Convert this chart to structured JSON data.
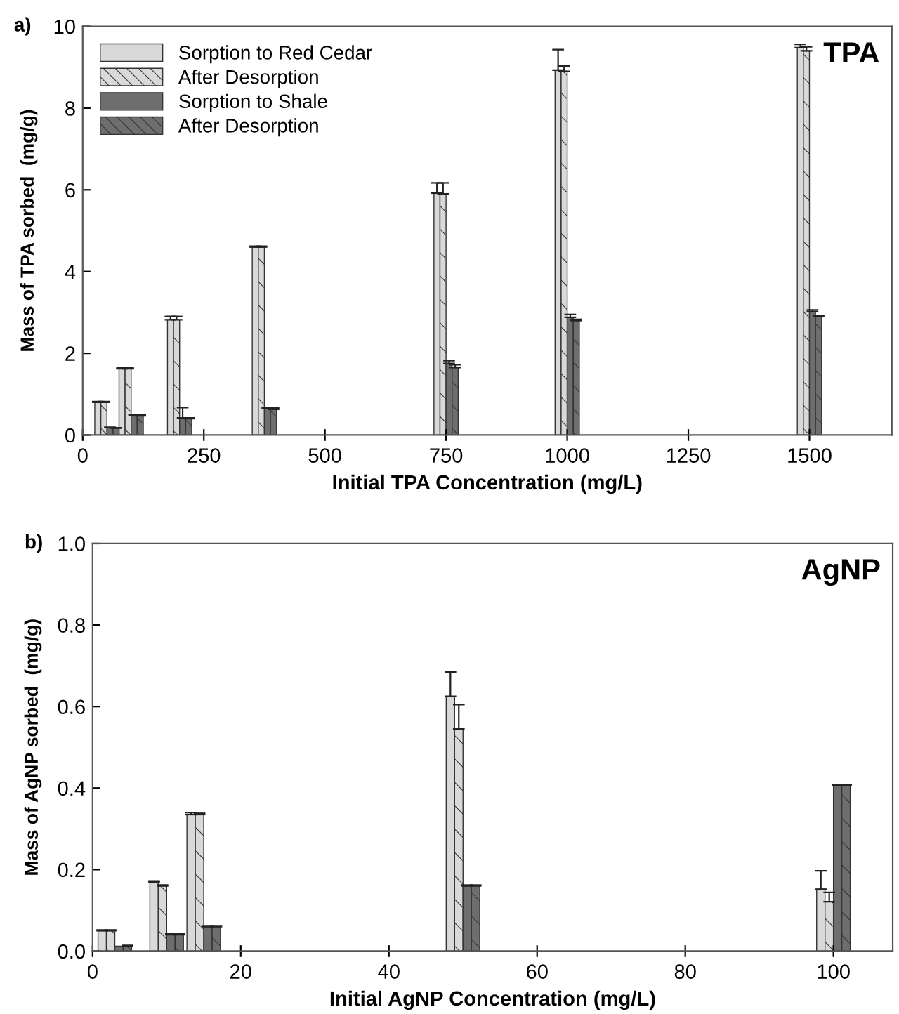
{
  "chart_data": [
    {
      "type": "bar",
      "xlabel": "Initial TPA Concentration (mg/L)",
      "ylabel": "Mass of TPA sorbed  (mg/g)",
      "annotations": [
        "a)",
        "TPA"
      ],
      "x": [
        50,
        100,
        200,
        375,
        750,
        1000,
        1500
      ],
      "xlim": [
        0,
        1670
      ],
      "xticks": [
        0,
        250,
        500,
        750,
        1000,
        1250,
        1500
      ],
      "ylim": [
        0,
        10
      ],
      "yticks": [
        0,
        2,
        4,
        6,
        8,
        10
      ],
      "legend": "top left",
      "grid": false,
      "series": [
        {
          "name": "Sorption to Red Cedar",
          "color": "#d9d9d9",
          "values": [
            0.8,
            1.62,
            2.82,
            4.6,
            5.92,
            8.93,
            9.48
          ],
          "errors": [
            [
              0.8,
              0.82
            ],
            [
              1.62,
              1.64
            ],
            [
              2.82,
              2.9
            ],
            [
              4.6,
              4.62
            ],
            [
              5.92,
              6.17
            ],
            [
              8.93,
              9.43
            ],
            [
              9.48,
              9.56
            ]
          ]
        },
        {
          "name": "After Desorption",
          "color": "#d9d9d9",
          "values": [
            0.8,
            1.62,
            2.82,
            4.6,
            5.9,
            8.9,
            9.4
          ],
          "errors": [
            [
              0.8,
              0.82
            ],
            [
              1.62,
              1.64
            ],
            [
              2.82,
              2.9
            ],
            [
              4.6,
              4.62
            ],
            [
              5.9,
              6.17
            ],
            [
              8.9,
              9.03
            ],
            [
              9.4,
              9.5
            ]
          ]
        },
        {
          "name": "Sorption to Shale",
          "color": "#6e6e6e",
          "values": [
            0.18,
            0.48,
            0.42,
            0.65,
            1.75,
            2.88,
            3.02
          ],
          "errors": [
            [
              0.18,
              0.19
            ],
            [
              0.48,
              0.5
            ],
            [
              0.42,
              0.67
            ],
            [
              0.65,
              0.67
            ],
            [
              1.75,
              1.82
            ],
            [
              2.88,
              2.95
            ],
            [
              3.02,
              3.06
            ]
          ]
        },
        {
          "name": "After Desorption",
          "color": "#6e6e6e",
          "values": [
            0.17,
            0.47,
            0.4,
            0.63,
            1.65,
            2.8,
            2.9
          ],
          "errors": [
            [
              0.17,
              0.18
            ],
            [
              0.47,
              0.49
            ],
            [
              0.4,
              0.42
            ],
            [
              0.63,
              0.66
            ],
            [
              1.65,
              1.72
            ],
            [
              2.8,
              2.83
            ],
            [
              2.9,
              2.92
            ]
          ]
        }
      ]
    },
    {
      "type": "bar",
      "xlabel": "Initial AgNP Concentration (mg/L)",
      "ylabel": "Mass of AgNP sorbed  (mg/g)",
      "annotations": [
        "b)",
        "AgNP"
      ],
      "x": [
        3,
        10,
        15,
        50,
        100
      ],
      "xlim": [
        0,
        108
      ],
      "xticks": [
        0,
        20,
        40,
        60,
        80,
        100
      ],
      "ylim": [
        0,
        1.0
      ],
      "yticks": [
        {
          "value": 0,
          "label": "0.0"
        },
        0.2,
        0.4,
        0.6,
        0.8,
        {
          "value": 1.0,
          "label": "1.0"
        }
      ],
      "grid": false,
      "series": [
        {
          "color": "#d9d9d9",
          "values": [
            0.05,
            0.17,
            0.335,
            0.625,
            0.152
          ],
          "errors": [
            [
              0.05,
              0.052
            ],
            [
              0.17,
              0.172
            ],
            [
              0.335,
              0.34
            ],
            [
              0.625,
              0.685
            ],
            [
              0.152,
              0.197
            ]
          ]
        },
        {
          "color": "#d9d9d9",
          "values": [
            0.05,
            0.16,
            0.335,
            0.545,
            0.121
          ],
          "errors": [
            [
              0.05,
              0.052
            ],
            [
              0.16,
              0.162
            ],
            [
              0.335,
              0.338
            ],
            [
              0.545,
              0.605
            ],
            [
              0.121,
              0.144
            ]
          ]
        },
        {
          "color": "#6e6e6e",
          "values": [
            0.012,
            0.04,
            0.06,
            0.16,
            0.407
          ],
          "errors": [
            null,
            [
              0.04,
              0.042
            ],
            [
              0.06,
              0.062
            ],
            [
              0.16,
              0.162
            ],
            [
              0.407,
              0.409
            ]
          ]
        },
        {
          "color": "#6e6e6e",
          "values": [
            0.012,
            0.04,
            0.06,
            0.16,
            0.407
          ],
          "errors": [
            [
              0.012,
              0.014
            ],
            [
              0.04,
              0.042
            ],
            [
              0.06,
              0.062
            ],
            [
              0.16,
              0.162
            ],
            [
              0.407,
              0.409
            ]
          ]
        }
      ]
    }
  ]
}
